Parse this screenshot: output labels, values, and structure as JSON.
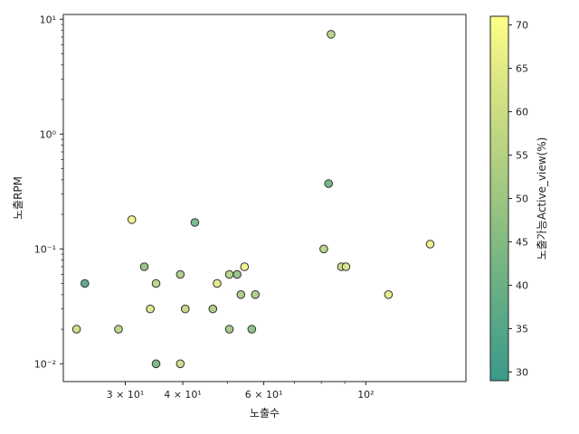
{
  "chart_data": {
    "type": "scatter",
    "xlabel": "노출수",
    "ylabel": "노출RPM",
    "colorbar_label": "노출가능Active_view(%)",
    "xscale": "log",
    "yscale": "log",
    "xlim": [
      22,
      165
    ],
    "ylim": [
      0.007,
      11
    ],
    "x_ticks": [
      {
        "value": 30,
        "label": "3 × 10¹"
      },
      {
        "value": 40,
        "label": "4 × 10¹"
      },
      {
        "value": 60,
        "label": "6 × 10¹"
      },
      {
        "value": 100,
        "label": "10²"
      }
    ],
    "y_ticks": [
      {
        "value": 0.01,
        "label": "10⁻²"
      },
      {
        "value": 0.1,
        "label": "10⁻¹"
      },
      {
        "value": 1,
        "label": "10⁰"
      },
      {
        "value": 10,
        "label": "10¹"
      }
    ],
    "colorbar_range": [
      29,
      71
    ],
    "colorbar_ticks": [
      30,
      35,
      40,
      45,
      50,
      55,
      60,
      65,
      70
    ],
    "colormap": [
      "#3b9a8b",
      "#58a886",
      "#79b683",
      "#9dc681",
      "#bed681",
      "#dde784",
      "#ffff88"
    ],
    "grid": false,
    "points": [
      {
        "x": 23.5,
        "y": 0.02,
        "c": 60
      },
      {
        "x": 24.5,
        "y": 0.05,
        "c": 35
      },
      {
        "x": 29,
        "y": 0.02,
        "c": 55
      },
      {
        "x": 31,
        "y": 0.18,
        "c": 68
      },
      {
        "x": 33,
        "y": 0.07,
        "c": 48
      },
      {
        "x": 34,
        "y": 0.03,
        "c": 64
      },
      {
        "x": 35,
        "y": 0.05,
        "c": 55
      },
      {
        "x": 35,
        "y": 0.01,
        "c": 42
      },
      {
        "x": 39.5,
        "y": 0.06,
        "c": 52
      },
      {
        "x": 39.5,
        "y": 0.01,
        "c": 60
      },
      {
        "x": 40.5,
        "y": 0.03,
        "c": 58
      },
      {
        "x": 42.5,
        "y": 0.17,
        "c": 42
      },
      {
        "x": 46.5,
        "y": 0.03,
        "c": 52
      },
      {
        "x": 47.5,
        "y": 0.05,
        "c": 65
      },
      {
        "x": 50.5,
        "y": 0.06,
        "c": 55
      },
      {
        "x": 50.5,
        "y": 0.02,
        "c": 50
      },
      {
        "x": 52.5,
        "y": 0.06,
        "c": 48
      },
      {
        "x": 53.5,
        "y": 0.04,
        "c": 52
      },
      {
        "x": 54.5,
        "y": 0.07,
        "c": 68
      },
      {
        "x": 56.5,
        "y": 0.02,
        "c": 46
      },
      {
        "x": 57.5,
        "y": 0.04,
        "c": 52
      },
      {
        "x": 81,
        "y": 0.1,
        "c": 55
      },
      {
        "x": 83,
        "y": 0.37,
        "c": 40
      },
      {
        "x": 84,
        "y": 7.4,
        "c": 55
      },
      {
        "x": 88.5,
        "y": 0.07,
        "c": 60
      },
      {
        "x": 90.5,
        "y": 0.07,
        "c": 63
      },
      {
        "x": 112,
        "y": 0.04,
        "c": 66
      },
      {
        "x": 138,
        "y": 0.11,
        "c": 67
      }
    ]
  }
}
